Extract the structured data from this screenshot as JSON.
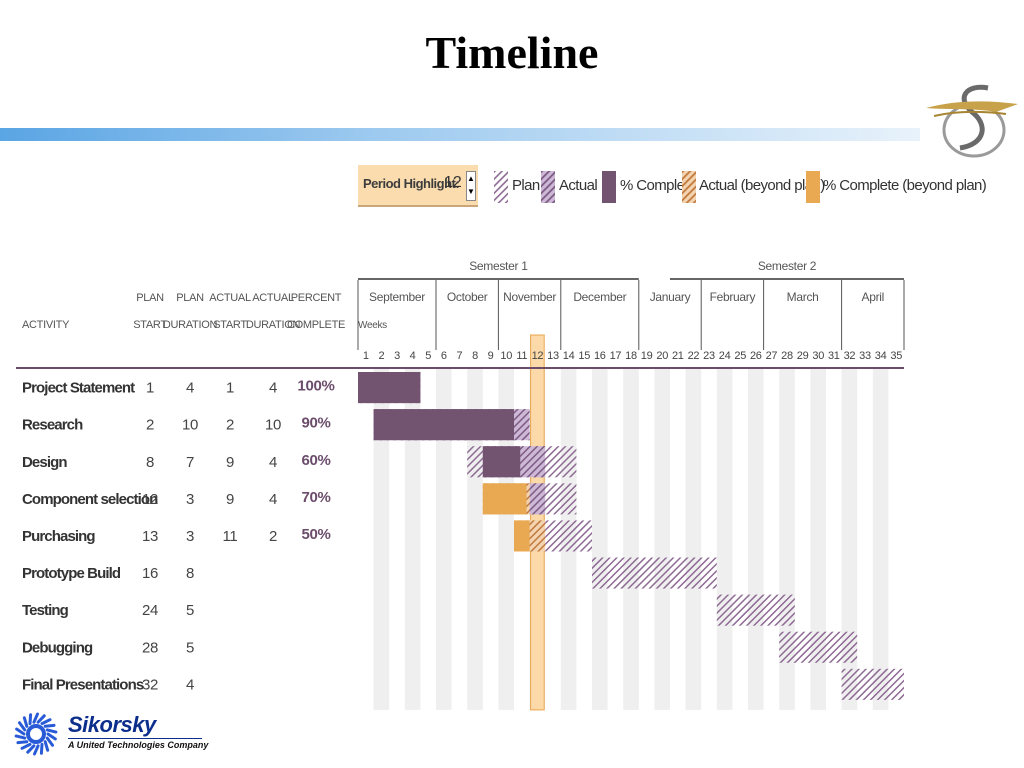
{
  "slide": {
    "title": "Timeline"
  },
  "legend": {
    "period_highlight_label": "Period Highlight:",
    "period_highlight_value": "12",
    "spinner_up": "▲",
    "spinner_down": "▼",
    "items": [
      {
        "label": "Plan",
        "key": "plan"
      },
      {
        "label": "Actual",
        "key": "actual"
      },
      {
        "label": "% Complete",
        "key": "complete"
      },
      {
        "label": "Actual (beyond plan)",
        "key": "actual_beyond"
      },
      {
        "label": "% Complete (beyond plan)",
        "key": "complete_beyond"
      }
    ]
  },
  "colors": {
    "plan_hatch": "#8e6a94",
    "actual_fill": "#b9a0c4",
    "complete": "#725470",
    "beyond_hatch": "#d08b4b",
    "complete_beyond": "#e8a952",
    "highlight": "#fbd9a9",
    "highlight_border": "#e9a54d",
    "band": "#efefef",
    "header_rule": "#333333"
  },
  "chart_data": {
    "type": "gantt",
    "semesters": [
      {
        "label": "Semester 1",
        "first_week": 1,
        "last_week": 18
      },
      {
        "label": "Semester 2",
        "first_week": 21,
        "last_week": 35
      }
    ],
    "months": [
      {
        "label": "September",
        "first_week": 1,
        "last_week": 5
      },
      {
        "label": "October",
        "first_week": 6,
        "last_week": 9
      },
      {
        "label": "November",
        "first_week": 10,
        "last_week": 13
      },
      {
        "label": "December",
        "first_week": 14,
        "last_week": 18
      },
      {
        "label": "January",
        "first_week": 19,
        "last_week": 22
      },
      {
        "label": "February",
        "first_week": 23,
        "last_week": 26
      },
      {
        "label": "March",
        "first_week": 27,
        "last_week": 31
      },
      {
        "label": "April",
        "first_week": 32,
        "last_week": 35
      }
    ],
    "weeks_label": "Weeks",
    "weeks": [
      1,
      2,
      3,
      4,
      5,
      6,
      7,
      8,
      9,
      10,
      11,
      12,
      13,
      14,
      15,
      16,
      17,
      18,
      19,
      20,
      21,
      22,
      23,
      24,
      25,
      26,
      27,
      28,
      29,
      30,
      31,
      32,
      33,
      34,
      35
    ],
    "highlight_week": 12,
    "column_headers": [
      {
        "line1": "",
        "line2": "ACTIVITY"
      },
      {
        "line1": "PLAN",
        "line2": "START"
      },
      {
        "line1": "PLAN",
        "line2": "DURATION"
      },
      {
        "line1": "ACTUAL",
        "line2": "START"
      },
      {
        "line1": "ACTUAL",
        "line2": "DURATION"
      },
      {
        "line1": "PERCENT",
        "line2": "COMPLETE"
      }
    ],
    "activities": [
      {
        "name": "Project Statement",
        "plan_start": 1,
        "plan_duration": 4,
        "actual_start": 1,
        "actual_duration": 4,
        "percent": "100%"
      },
      {
        "name": "Research",
        "plan_start": 2,
        "plan_duration": 10,
        "actual_start": 2,
        "actual_duration": 10,
        "percent": "90%"
      },
      {
        "name": "Design",
        "plan_start": 8,
        "plan_duration": 7,
        "actual_start": 9,
        "actual_duration": 4,
        "percent": "60%"
      },
      {
        "name": "Component selection",
        "plan_start": 12,
        "plan_duration": 3,
        "actual_start": 9,
        "actual_duration": 4,
        "percent": "70%"
      },
      {
        "name": "Purchasing",
        "plan_start": 13,
        "plan_duration": 3,
        "actual_start": 11,
        "actual_duration": 2,
        "percent": "50%"
      },
      {
        "name": "Prototype Build",
        "plan_start": 16,
        "plan_duration": 8,
        "actual_start": null,
        "actual_duration": null,
        "percent": ""
      },
      {
        "name": "Testing",
        "plan_start": 24,
        "plan_duration": 5,
        "actual_start": null,
        "actual_duration": null,
        "percent": ""
      },
      {
        "name": "Debugging",
        "plan_start": 28,
        "plan_duration": 5,
        "actual_start": null,
        "actual_duration": null,
        "percent": ""
      },
      {
        "name": "Final Presentations",
        "plan_start": 32,
        "plan_duration": 4,
        "actual_start": null,
        "actual_duration": null,
        "percent": ""
      }
    ]
  },
  "footer": {
    "company": "Sikorsky",
    "tagline": "A United Technologies Company"
  }
}
